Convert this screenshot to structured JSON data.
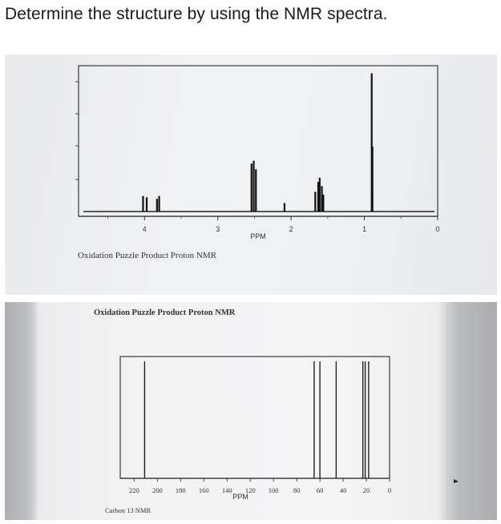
{
  "question": "Determine the structure by using the NMR spectra.",
  "chart_data": [
    {
      "type": "line",
      "title": "",
      "caption": "Oxidation Puzzle Product Proton NMR",
      "xlabel": "PPM",
      "ylabel": "",
      "xlim": [
        4.9,
        0
      ],
      "x_ticks": [
        {
          "value": 4,
          "label": "4"
        },
        {
          "value": 3,
          "label": "3"
        },
        {
          "value": 2,
          "label": "2"
        },
        {
          "value": 1,
          "label": "1"
        },
        {
          "value": 0,
          "label": "0"
        }
      ],
      "peaks": [
        {
          "ppm": 4.02,
          "height": 0.11
        },
        {
          "ppm": 3.97,
          "height": 0.1
        },
        {
          "ppm": 3.83,
          "height": 0.09
        },
        {
          "ppm": 3.8,
          "height": 0.11
        },
        {
          "ppm": 2.54,
          "height": 0.34
        },
        {
          "ppm": 2.51,
          "height": 0.36
        },
        {
          "ppm": 2.48,
          "height": 0.3
        },
        {
          "ppm": 2.09,
          "height": 0.06
        },
        {
          "ppm": 1.67,
          "height": 0.14
        },
        {
          "ppm": 1.63,
          "height": 0.21
        },
        {
          "ppm": 1.61,
          "height": 0.24
        },
        {
          "ppm": 1.58,
          "height": 0.18
        },
        {
          "ppm": 1.56,
          "height": 0.12
        },
        {
          "ppm": 0.9,
          "height": 0.98
        },
        {
          "ppm": 0.89,
          "height": 0.46
        }
      ],
      "grid": false
    },
    {
      "type": "line",
      "title": "",
      "caption_top": "Oxidation Puzzle Product Proton NMR",
      "caption_bottom": "Carbon 13 NMR",
      "xlabel": "PPM",
      "ylabel": "",
      "xlim": [
        232,
        0
      ],
      "x_ticks": [
        {
          "value": 220,
          "label": "220"
        },
        {
          "value": 200,
          "label": "200"
        },
        {
          "value": 180,
          "label": "180"
        },
        {
          "value": 160,
          "label": "160"
        },
        {
          "value": 140,
          "label": "140"
        },
        {
          "value": 120,
          "label": "120"
        },
        {
          "value": 100,
          "label": "100"
        },
        {
          "value": 80,
          "label": "80"
        },
        {
          "value": 60,
          "label": "60"
        },
        {
          "value": 40,
          "label": "40"
        },
        {
          "value": 20,
          "label": "20"
        },
        {
          "value": 0,
          "label": "0"
        }
      ],
      "peaks": [
        {
          "ppm": 211,
          "height": 0.94
        },
        {
          "ppm": 65,
          "height": 0.94
        },
        {
          "ppm": 60,
          "height": 0.94
        },
        {
          "ppm": 46,
          "height": 0.94
        },
        {
          "ppm": 23,
          "height": 0.94
        },
        {
          "ppm": 21,
          "height": 0.94
        },
        {
          "ppm": 18,
          "height": 0.94
        }
      ],
      "grid": false
    }
  ]
}
